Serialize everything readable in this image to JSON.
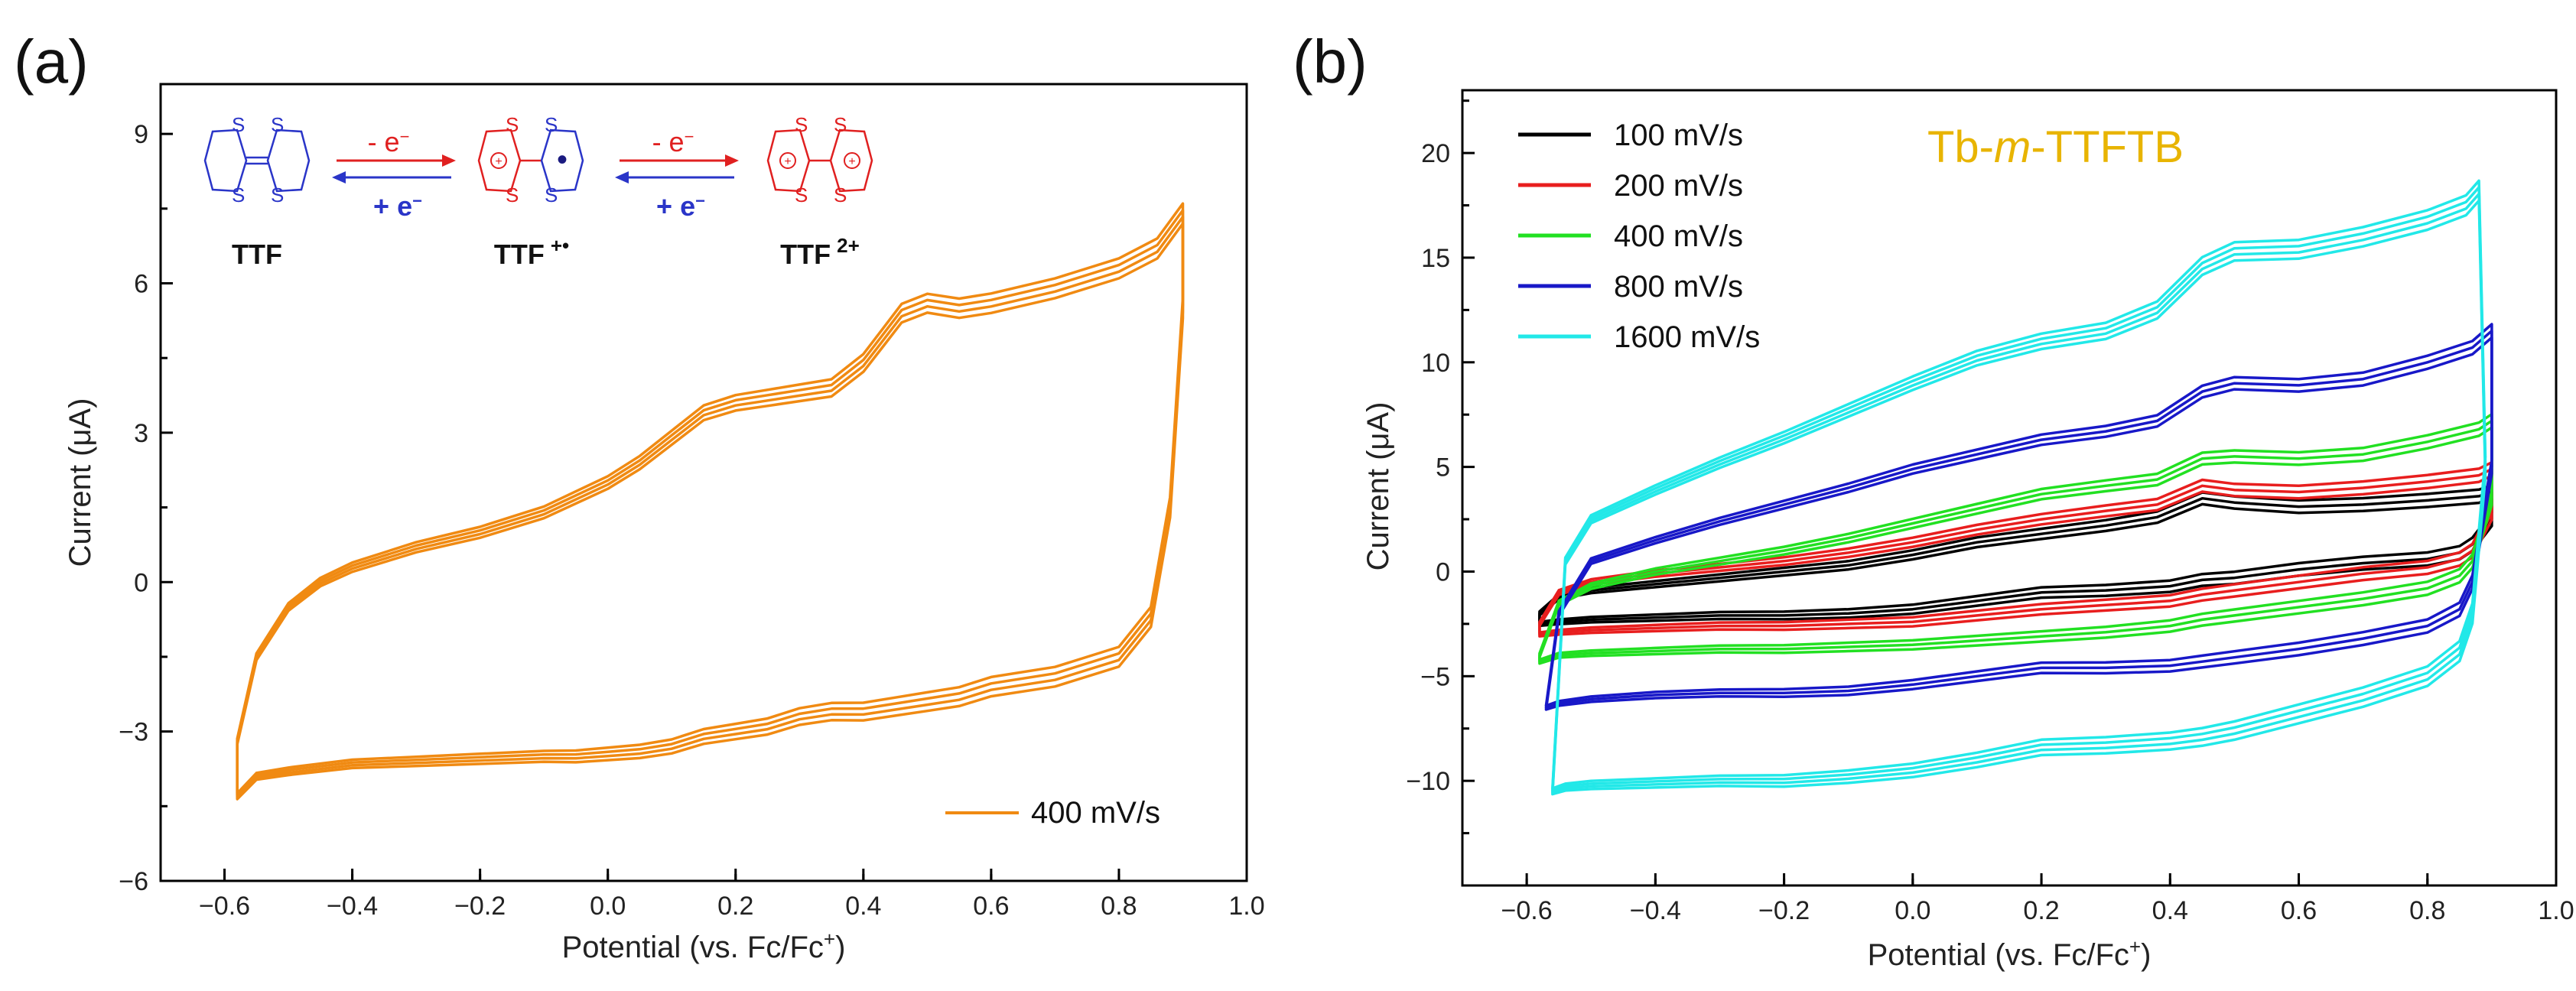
{
  "chart_data": [
    {
      "type": "line",
      "panel_label": "(a)",
      "xlabel": "Potential (vs. Fc/Fc",
      "xlabel_sup": "+",
      "xlabel_end": ")",
      "ylabel": "Current (μA)",
      "xlim": [
        -0.7,
        1.0
      ],
      "ylim": [
        -6,
        10
      ],
      "xticks": [
        -0.6,
        -0.4,
        -0.2,
        0.0,
        0.2,
        0.4,
        0.6,
        0.8,
        1.0
      ],
      "xtick_labels": [
        "−0.6",
        "−0.4",
        "−0.2",
        "0.0",
        "0.2",
        "0.4",
        "0.6",
        "0.8",
        "1.0"
      ],
      "yticks": [
        -6,
        -3,
        0,
        3,
        6,
        9
      ],
      "ytick_labels": [
        "−6",
        "−3",
        "0",
        "3",
        "6",
        "9"
      ],
      "legend": "bottom-right",
      "series": [
        {
          "name": "400 mV/s",
          "color": "#f08a12",
          "cycles": 4,
          "x": [
            -0.58,
            -0.55,
            -0.5,
            -0.45,
            -0.4,
            -0.3,
            -0.2,
            -0.1,
            0.0,
            0.05,
            0.1,
            0.15,
            0.2,
            0.25,
            0.3,
            0.35,
            0.4,
            0.43,
            0.46,
            0.5,
            0.55,
            0.6,
            0.7,
            0.8,
            0.86,
            0.9,
            0.9,
            0.88,
            0.85,
            0.8,
            0.7,
            0.6,
            0.55,
            0.5,
            0.45,
            0.4,
            0.35,
            0.3,
            0.25,
            0.2,
            0.15,
            0.1,
            0.05,
            0.0,
            -0.05,
            -0.1,
            -0.2,
            -0.3,
            -0.4,
            -0.5,
            -0.55,
            -0.58
          ],
          "y": [
            -3.2,
            -1.5,
            -0.5,
            0.0,
            0.3,
            0.7,
            1.0,
            1.4,
            2.0,
            2.4,
            2.9,
            3.4,
            3.6,
            3.7,
            3.8,
            3.9,
            4.4,
            4.9,
            5.4,
            5.6,
            5.5,
            5.6,
            5.9,
            6.3,
            6.7,
            7.4,
            5.5,
            1.5,
            -0.7,
            -1.5,
            -1.9,
            -2.1,
            -2.3,
            -2.4,
            -2.5,
            -2.6,
            -2.6,
            -2.7,
            -2.9,
            -3.0,
            -3.1,
            -3.3,
            -3.4,
            -3.45,
            -3.5,
            -3.5,
            -3.55,
            -3.6,
            -3.65,
            -3.8,
            -3.9,
            -4.3
          ]
        }
      ],
      "inset": {
        "labels": [
          "TTF",
          "TTF",
          "TTF"
        ],
        "superscripts": [
          "",
          "+•",
          "2+"
        ],
        "arrow_forward": "- e",
        "arrow_back": "+ e",
        "electron_sup": "−",
        "atom": "S",
        "charge": "+",
        "radical_dot": "•"
      }
    },
    {
      "type": "line",
      "panel_label": "(b)",
      "title": "Tb-m-TTFTB",
      "title_parts": [
        "Tb-",
        "m",
        "-TTFTB"
      ],
      "title_color": "#e8b400",
      "xlabel": "Potential (vs. Fc/Fc",
      "xlabel_sup": "+",
      "xlabel_end": ")",
      "ylabel": "Current (μA)",
      "xlim": [
        -0.7,
        1.0
      ],
      "ylim": [
        -15,
        23
      ],
      "xticks": [
        -0.6,
        -0.4,
        -0.2,
        0.0,
        0.2,
        0.4,
        0.6,
        0.8,
        1.0
      ],
      "xtick_labels": [
        "−0.6",
        "−0.4",
        "−0.2",
        "0.0",
        "0.2",
        "0.4",
        "0.6",
        "0.8",
        "1.0"
      ],
      "yticks": [
        -10,
        -5,
        0,
        5,
        10,
        15,
        20
      ],
      "ytick_labels": [
        "−10",
        "−5",
        "0",
        "5",
        "10",
        "15",
        "20"
      ],
      "legend": "top-left",
      "series": [
        {
          "name": "100 mV/s",
          "color": "#000000",
          "cycles": 3,
          "x": [
            -0.58,
            -0.55,
            -0.5,
            -0.4,
            -0.3,
            -0.2,
            -0.1,
            0.0,
            0.1,
            0.2,
            0.3,
            0.38,
            0.45,
            0.5,
            0.6,
            0.7,
            0.8,
            0.88,
            0.9,
            0.9,
            0.87,
            0.85,
            0.8,
            0.7,
            0.6,
            0.5,
            0.45,
            0.4,
            0.3,
            0.2,
            0.1,
            0.0,
            -0.1,
            -0.2,
            -0.3,
            -0.4,
            -0.5,
            -0.55,
            -0.58
          ],
          "y": [
            -2.0,
            -1.2,
            -0.9,
            -0.6,
            -0.3,
            0.0,
            0.3,
            0.8,
            1.4,
            1.8,
            2.2,
            2.6,
            3.5,
            3.3,
            3.1,
            3.2,
            3.4,
            3.6,
            3.8,
            2.5,
            1.3,
            0.9,
            0.6,
            0.4,
            0.1,
            -0.3,
            -0.4,
            -0.7,
            -0.9,
            -1.0,
            -1.4,
            -1.8,
            -2.0,
            -2.1,
            -2.1,
            -2.2,
            -2.3,
            -2.4,
            -2.5
          ]
        },
        {
          "name": "200 mV/s",
          "color": "#e81e1e",
          "cycles": 3,
          "x": [
            -0.58,
            -0.55,
            -0.5,
            -0.4,
            -0.3,
            -0.2,
            -0.1,
            0.0,
            0.1,
            0.2,
            0.3,
            0.38,
            0.45,
            0.5,
            0.6,
            0.7,
            0.8,
            0.88,
            0.9,
            0.9,
            0.87,
            0.85,
            0.8,
            0.7,
            0.6,
            0.5,
            0.45,
            0.4,
            0.3,
            0.2,
            0.1,
            0.0,
            -0.1,
            -0.2,
            -0.3,
            -0.4,
            -0.5,
            -0.55,
            -0.58
          ],
          "y": [
            -2.5,
            -1.0,
            -0.5,
            -0.1,
            0.2,
            0.5,
            0.9,
            1.4,
            2.0,
            2.5,
            2.9,
            3.2,
            4.1,
            3.9,
            3.8,
            4.0,
            4.3,
            4.6,
            4.9,
            2.8,
            1.0,
            0.6,
            0.2,
            -0.1,
            -0.5,
            -0.9,
            -1.1,
            -1.4,
            -1.6,
            -1.8,
            -2.1,
            -2.4,
            -2.5,
            -2.6,
            -2.6,
            -2.7,
            -2.8,
            -2.9,
            -3.0
          ]
        },
        {
          "name": "400 mV/s",
          "color": "#22e022",
          "cycles": 3,
          "x": [
            -0.58,
            -0.55,
            -0.5,
            -0.4,
            -0.3,
            -0.2,
            -0.1,
            0.0,
            0.1,
            0.2,
            0.3,
            0.38,
            0.45,
            0.5,
            0.6,
            0.7,
            0.8,
            0.88,
            0.9,
            0.9,
            0.87,
            0.85,
            0.8,
            0.7,
            0.6,
            0.5,
            0.45,
            0.4,
            0.3,
            0.2,
            0.1,
            0.0,
            -0.1,
            -0.2,
            -0.3,
            -0.4,
            -0.5,
            -0.55,
            -0.58
          ],
          "y": [
            -4.0,
            -1.5,
            -0.7,
            0.0,
            0.5,
            1.0,
            1.6,
            2.3,
            3.0,
            3.7,
            4.1,
            4.4,
            5.4,
            5.5,
            5.4,
            5.6,
            6.2,
            6.8,
            7.2,
            3.5,
            0.5,
            -0.2,
            -0.8,
            -1.3,
            -1.7,
            -2.1,
            -2.3,
            -2.6,
            -2.9,
            -3.1,
            -3.3,
            -3.5,
            -3.6,
            -3.7,
            -3.7,
            -3.8,
            -3.9,
            -4.0,
            -4.3
          ]
        },
        {
          "name": "800 mV/s",
          "color": "#1818c8",
          "cycles": 3,
          "x": [
            -0.57,
            -0.55,
            -0.5,
            -0.4,
            -0.3,
            -0.2,
            -0.1,
            0.0,
            0.1,
            0.2,
            0.3,
            0.38,
            0.45,
            0.5,
            0.6,
            0.7,
            0.8,
            0.87,
            0.9,
            0.9,
            0.87,
            0.85,
            0.8,
            0.7,
            0.6,
            0.5,
            0.45,
            0.4,
            0.3,
            0.2,
            0.1,
            0.0,
            -0.1,
            -0.2,
            -0.3,
            -0.4,
            -0.5,
            -0.55,
            -0.57
          ],
          "y": [
            -6.5,
            -2.0,
            0.5,
            1.5,
            2.4,
            3.2,
            4.0,
            4.9,
            5.6,
            6.3,
            6.7,
            7.2,
            8.6,
            9.0,
            8.9,
            9.2,
            10.0,
            10.7,
            11.5,
            5.0,
            -0.5,
            -1.8,
            -2.6,
            -3.2,
            -3.7,
            -4.1,
            -4.3,
            -4.5,
            -4.6,
            -4.6,
            -5.0,
            -5.4,
            -5.7,
            -5.8,
            -5.8,
            -5.9,
            -6.1,
            -6.3,
            -6.5
          ]
        },
        {
          "name": "1600 mV/s",
          "color": "#22e8e8",
          "cycles": 4,
          "x": [
            -0.56,
            -0.54,
            -0.5,
            -0.4,
            -0.3,
            -0.2,
            -0.1,
            0.0,
            0.1,
            0.2,
            0.3,
            0.38,
            0.45,
            0.5,
            0.6,
            0.7,
            0.8,
            0.86,
            0.88,
            0.89,
            0.87,
            0.85,
            0.8,
            0.7,
            0.6,
            0.5,
            0.45,
            0.4,
            0.3,
            0.2,
            0.1,
            0.0,
            -0.1,
            -0.2,
            -0.3,
            -0.4,
            -0.5,
            -0.54,
            -0.56
          ],
          "y": [
            -10.5,
            0.5,
            2.5,
            3.9,
            5.2,
            6.4,
            7.7,
            9.0,
            10.2,
            11.0,
            11.5,
            12.5,
            14.6,
            15.3,
            15.4,
            16.0,
            16.8,
            17.5,
            18.2,
            5.0,
            -2.0,
            -3.8,
            -5.0,
            -6.0,
            -6.8,
            -7.6,
            -7.9,
            -8.1,
            -8.3,
            -8.4,
            -9.0,
            -9.5,
            -9.8,
            -10.0,
            -10.0,
            -10.1,
            -10.2,
            -10.3,
            -10.5
          ]
        }
      ]
    }
  ]
}
